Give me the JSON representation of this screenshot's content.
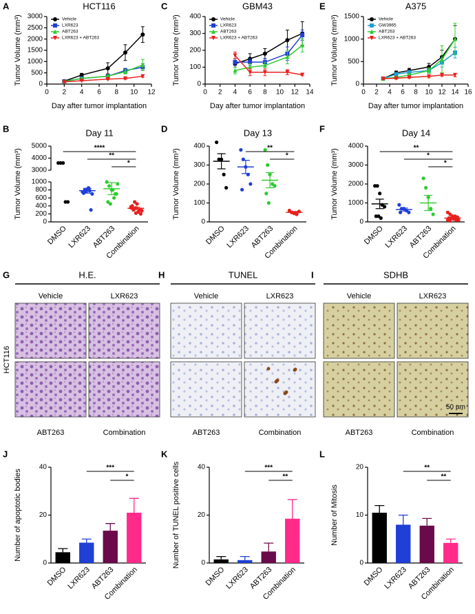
{
  "chart_data": [
    {
      "type": "line",
      "panel": "A",
      "title": "HCT116",
      "xlabel": "Day after tumor implantation",
      "ylabel": "Tumor Volume (mm³)",
      "x": [
        2,
        4,
        7,
        9,
        11
      ],
      "xlim": [
        0,
        12
      ],
      "xticks": [
        0,
        2,
        4,
        6,
        8,
        10,
        12
      ],
      "ylim": [
        0,
        3000
      ],
      "yticks": [
        0,
        500,
        1000,
        1500,
        2000,
        2500,
        3000
      ],
      "legend": "upper left",
      "series": [
        {
          "name": "Vehicle",
          "color": "#000000",
          "marker": "circle",
          "values": [
            130,
            400,
            700,
            1400,
            2200
          ],
          "errors": [
            30,
            80,
            250,
            350,
            350
          ]
        },
        {
          "name": "LXR623",
          "color": "#1f3fd6",
          "marker": "square",
          "values": [
            120,
            250,
            350,
            600,
            750
          ],
          "errors": [
            20,
            40,
            80,
            100,
            150
          ]
        },
        {
          "name": "ABT263",
          "color": "#2ecc2e",
          "marker": "triangle-up",
          "values": [
            120,
            250,
            350,
            550,
            850
          ],
          "errors": [
            20,
            50,
            60,
            100,
            250
          ]
        },
        {
          "name": "LXR623 + ABT263",
          "color": "#e8201e",
          "marker": "triangle-down",
          "values": [
            100,
            150,
            220,
            250,
            350
          ],
          "errors": [
            20,
            20,
            30,
            40,
            50
          ]
        }
      ]
    },
    {
      "type": "line",
      "panel": "C",
      "title": "GBM43",
      "xlabel": "Day after tumor implantation",
      "ylabel": "Tumor Volume (mm³)",
      "x": [
        4,
        6,
        8,
        11,
        13
      ],
      "xlim": [
        0,
        14
      ],
      "xticks": [
        0,
        2,
        4,
        6,
        8,
        10,
        12,
        14
      ],
      "ylim": [
        0,
        400
      ],
      "yticks": [
        0,
        100,
        200,
        300,
        400
      ],
      "legend": "upper left",
      "series": [
        {
          "name": "Vehicle",
          "color": "#000000",
          "marker": "circle",
          "values": [
            120,
            150,
            180,
            260,
            300
          ],
          "errors": [
            20,
            30,
            30,
            60,
            70
          ]
        },
        {
          "name": "LXR623",
          "color": "#1f3fd6",
          "marker": "square",
          "values": [
            130,
            130,
            130,
            180,
            290
          ],
          "errors": [
            20,
            20,
            20,
            40,
            30
          ]
        },
        {
          "name": "ABT263",
          "color": "#2ecc2e",
          "marker": "triangle-up",
          "values": [
            80,
            100,
            110,
            160,
            230
          ],
          "errors": [
            20,
            20,
            20,
            40,
            40
          ]
        },
        {
          "name": "LXR623 + ABT263",
          "color": "#e8201e",
          "marker": "triangle-down",
          "values": [
            170,
            70,
            70,
            70,
            55
          ],
          "errors": [
            20,
            20,
            20,
            15,
            5
          ]
        }
      ]
    },
    {
      "type": "line",
      "panel": "E",
      "title": "A375",
      "xlabel": "Day after tumor implantation",
      "ylabel": "Tumor Volume (mm³)",
      "x": [
        3,
        5,
        7,
        10,
        12,
        14
      ],
      "xlim": [
        0,
        16
      ],
      "xticks": [
        0,
        2,
        4,
        6,
        8,
        10,
        12,
        14,
        16
      ],
      "ylim": [
        0,
        1500
      ],
      "yticks": [
        0,
        500,
        1000,
        1500
      ],
      "legend": "upper left",
      "series": [
        {
          "name": "Vehicle",
          "color": "#000000",
          "marker": "circle",
          "values": [
            120,
            250,
            300,
            380,
            600,
            1000
          ],
          "errors": [
            30,
            40,
            50,
            80,
            150,
            300
          ]
        },
        {
          "name": "GW3965",
          "color": "#1f9fd6",
          "marker": "square",
          "values": [
            120,
            220,
            260,
            300,
            480,
            700
          ],
          "errors": [
            20,
            30,
            40,
            60,
            100,
            120
          ]
        },
        {
          "name": "ABT263",
          "color": "#2ecc2e",
          "marker": "triangle-up",
          "values": [
            120,
            150,
            200,
            300,
            550,
            1000
          ],
          "errors": [
            20,
            30,
            40,
            60,
            300,
            350
          ]
        },
        {
          "name": "LXR623 + ABT263",
          "color": "#e8201e",
          "marker": "triangle-down",
          "values": [
            120,
            130,
            150,
            170,
            200,
            200
          ],
          "errors": [
            20,
            20,
            20,
            30,
            30,
            40
          ]
        }
      ]
    },
    {
      "type": "scatter",
      "panel": "B",
      "title": "Day 11",
      "ylabel": "Tumor Volume (mm³)",
      "categories": [
        "DMSO",
        "LXR623",
        "ABT263",
        "Combination"
      ],
      "colors": [
        "#000000",
        "#1f3fd6",
        "#2ecc2e",
        "#e8201e"
      ],
      "ylim": [
        0,
        1000
      ],
      "yticks": [
        0,
        200,
        400,
        600,
        800,
        1000
      ],
      "ylim_top": [
        3000,
        5000
      ],
      "yticks_top": [
        3000,
        4000,
        5000
      ],
      "points": [
        [
          3600,
          3600,
          3600,
          500,
          500
        ],
        [
          750,
          800,
          820,
          780,
          700,
          720,
          760,
          850,
          300
        ],
        [
          1000,
          900,
          800,
          600,
          700,
          500,
          450,
          800,
          700,
          950
        ],
        [
          380,
          300,
          350,
          250,
          200,
          400,
          500,
          450,
          300,
          280,
          350,
          320,
          220,
          250,
          300
        ]
      ],
      "means": [
        null,
        780,
        830,
        340
      ],
      "errors": [
        null,
        60,
        150,
        30
      ],
      "annotations": [
        {
          "text": "****",
          "between": [
            "DMSO",
            "Combination"
          ]
        },
        {
          "text": "**",
          "between": [
            "LXR623",
            "Combination"
          ]
        },
        {
          "text": "*",
          "between": [
            "ABT263",
            "Combination"
          ]
        }
      ]
    },
    {
      "type": "scatter",
      "panel": "D",
      "title": "Day 13",
      "ylabel": "Tumor Volume (mm³)",
      "categories": [
        "DMSO",
        "LXR623",
        "ABT263",
        "Combination"
      ],
      "colors": [
        "#000000",
        "#1f3fd6",
        "#2ecc2e",
        "#e8201e"
      ],
      "ylim": [
        0,
        400
      ],
      "yticks": [
        0,
        100,
        200,
        300,
        400
      ],
      "points": [
        [
          420,
          330,
          330,
          250,
          180
        ],
        [
          380,
          330,
          290,
          250,
          200,
          170
        ],
        [
          380,
          300,
          250,
          200,
          190,
          150,
          100
        ],
        [
          60,
          50,
          45,
          40,
          55
        ]
      ],
      "means": [
        320,
        290,
        220,
        50
      ],
      "errors": [
        40,
        35,
        40,
        5
      ],
      "annotations": [
        {
          "text": "**",
          "between": [
            "LXR623",
            "Combination"
          ]
        },
        {
          "text": "*",
          "between": [
            "ABT263",
            "Combination"
          ]
        }
      ]
    },
    {
      "type": "scatter",
      "panel": "F",
      "title": "Day 14",
      "ylabel": "Tumor Volume (mm³)",
      "categories": [
        "DMSO",
        "LXR623",
        "ABT263",
        "Combination"
      ],
      "colors": [
        "#000000",
        "#1f3fd6",
        "#2ecc2e",
        "#e8201e"
      ],
      "ylim": [
        0,
        4000
      ],
      "yticks": [
        0,
        1000,
        2000,
        3000,
        4000
      ],
      "points": [
        [
          1900,
          1900,
          1500,
          900,
          800,
          300,
          300,
          200
        ],
        [
          900,
          700,
          700,
          600,
          500,
          500
        ],
        [
          2300,
          1800,
          1300,
          700,
          400
        ],
        [
          500,
          400,
          300,
          300,
          250,
          200,
          200,
          150,
          100,
          100,
          100,
          50
        ]
      ],
      "means": [
        950,
        650,
        1000,
        200
      ],
      "errors": [
        250,
        80,
        400,
        40
      ],
      "annotations": [
        {
          "text": "**",
          "between": [
            "DMSO",
            "Combination"
          ]
        },
        {
          "text": "*",
          "between": [
            "LXR623",
            "Combination"
          ]
        },
        {
          "text": "*",
          "between": [
            "ABT263",
            "Combination"
          ]
        }
      ]
    },
    {
      "type": "bar",
      "panel": "J",
      "ylabel": "Number of apoptotic bodies",
      "categories": [
        "DMSO",
        "LXR623",
        "ABT263",
        "Combination"
      ],
      "colors": [
        "#000000",
        "#1f3fd6",
        "#6b0a4a",
        "#ff2a8a"
      ],
      "ylim": [
        0,
        40
      ],
      "yticks": [
        0,
        20,
        40
      ],
      "values": [
        4.5,
        8.5,
        13.5,
        21
      ],
      "errors": [
        1.5,
        1.5,
        3,
        6
      ],
      "annotations": [
        {
          "text": "***",
          "between": [
            "LXR623",
            "Combination"
          ]
        },
        {
          "text": "*",
          "between": [
            "ABT263",
            "Combination"
          ]
        }
      ]
    },
    {
      "type": "bar",
      "panel": "K",
      "ylabel": "Number of TUNEL positive cells",
      "categories": [
        "DMSO",
        "LXR623",
        "ABT263",
        "Combination"
      ],
      "colors": [
        "#000000",
        "#1f3fd6",
        "#6b0a4a",
        "#ff2a8a"
      ],
      "ylim": [
        0,
        40
      ],
      "yticks": [
        0,
        20,
        40
      ],
      "values": [
        1.5,
        1.2,
        4.8,
        18.5
      ],
      "errors": [
        1.2,
        1.5,
        3.5,
        8
      ],
      "annotations": [
        {
          "text": "***",
          "between": [
            "LXR623",
            "Combination"
          ]
        },
        {
          "text": "**",
          "between": [
            "ABT263",
            "Combination"
          ]
        }
      ]
    },
    {
      "type": "bar",
      "panel": "L",
      "ylabel": "Number of Mitosis",
      "categories": [
        "DMSO",
        "LXR623",
        "ABT263",
        "Combination"
      ],
      "colors": [
        "#000000",
        "#1f3fd6",
        "#6b0a4a",
        "#ff2a8a"
      ],
      "ylim": [
        0,
        20
      ],
      "yticks": [
        0,
        10,
        20
      ],
      "values": [
        10.5,
        8,
        7.8,
        4.2
      ],
      "errors": [
        1.5,
        2,
        1.5,
        0.8
      ],
      "annotations": [
        {
          "text": "**",
          "between": [
            "LXR623",
            "Combination"
          ]
        },
        {
          "text": "**",
          "between": [
            "ABT263",
            "Combination"
          ]
        }
      ]
    }
  ],
  "images": [
    {
      "panel": "G",
      "title": "H.E.",
      "labels": [
        "Vehicle",
        "LXR623",
        "ABT263",
        "Combination"
      ]
    },
    {
      "panel": "H",
      "title": "TUNEL",
      "labels": [
        "Vehicle",
        "LXR623",
        "ABT263",
        "Combination"
      ]
    },
    {
      "panel": "I",
      "title": "SDHB",
      "labels": [
        "Vehicle",
        "LXR623",
        "ABT263",
        "Combination"
      ]
    }
  ],
  "row_label": "HCT116",
  "scale_bar": "50 µm"
}
